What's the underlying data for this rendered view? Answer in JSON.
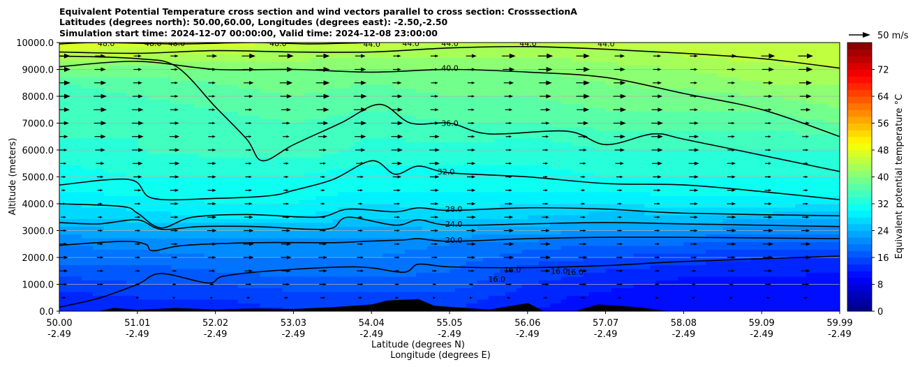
{
  "chart_data": {
    "type": "heatmap",
    "title_lines": [
      "Equivalent Potential Temperature cross section and wind vectors parallel to cross section: CrosssectionA",
      "Latitudes (degrees north): 50.00,60.00, Longitudes (degrees east): -2.50,-2.50",
      "Simulation start time: 2024-12-07 00:00:00, Valid time: 2024-12-08 23:00:00"
    ],
    "ylabel": "Altitude (meters)",
    "xlabel_lines": [
      "Latitude (degrees N)",
      "Longitude (degrees E)"
    ],
    "ylim": [
      0,
      10000
    ],
    "yticks": [
      "0.0",
      "1000.0",
      "2000.0",
      "3000.0",
      "4000.0",
      "5000.0",
      "6000.0",
      "7000.0",
      "8000.0",
      "9000.0",
      "10000.0"
    ],
    "ytick_values": [
      0,
      1000,
      2000,
      3000,
      4000,
      5000,
      6000,
      7000,
      8000,
      9000,
      10000
    ],
    "grid": "horizontal",
    "xticks": [
      {
        "lat": "50.00",
        "lon": "-2.49"
      },
      {
        "lat": "51.01",
        "lon": "-2.49"
      },
      {
        "lat": "52.02",
        "lon": "-2.49"
      },
      {
        "lat": "53.03",
        "lon": "-2.49"
      },
      {
        "lat": "54.04",
        "lon": "-2.49"
      },
      {
        "lat": "55.05",
        "lon": "-2.49"
      },
      {
        "lat": "56.06",
        "lon": "-2.49"
      },
      {
        "lat": "57.07",
        "lon": "-2.49"
      },
      {
        "lat": "58.08",
        "lon": "-2.49"
      },
      {
        "lat": "59.09",
        "lon": "-2.49"
      },
      {
        "lat": "59.99",
        "lon": "-2.49"
      }
    ],
    "xlim": [
      50.0,
      59.99
    ],
    "colorbar": {
      "label": "Equivalent potential temperature $^\\circ$C",
      "label_display": "Equivalent potential temperature °C",
      "ticks": [
        "0",
        "8",
        "16",
        "24",
        "32",
        "40",
        "48",
        "56",
        "64",
        "72"
      ],
      "tick_values": [
        0,
        8,
        16,
        24,
        32,
        40,
        48,
        56,
        64,
        72
      ],
      "range": [
        0,
        80
      ],
      "colormap": "jet"
    },
    "quiver_key": "50 m/s",
    "contour_levels": [
      {
        "level": 16.0,
        "label": "16.0",
        "heights": [
          [
            50.0,
            150
          ],
          [
            50.5,
            480
          ],
          [
            51.0,
            1000
          ],
          [
            51.3,
            1400
          ],
          [
            51.9,
            1050
          ],
          [
            52.1,
            1300
          ],
          [
            52.7,
            1500
          ],
          [
            53.8,
            1650
          ],
          [
            54.4,
            1450
          ],
          [
            54.6,
            1750
          ],
          [
            55.0,
            1650
          ],
          [
            56.0,
            1620
          ],
          [
            57.0,
            1700
          ],
          [
            58.0,
            1850
          ],
          [
            59.99,
            2050
          ]
        ],
        "label_positions": [
          [
            55.6,
            1200
          ],
          [
            55.8,
            1550
          ],
          [
            56.4,
            1500
          ],
          [
            56.6,
            1450
          ]
        ]
      },
      {
        "level": 20.0,
        "label": "20.0",
        "heights": [
          [
            50.0,
            2450
          ],
          [
            50.8,
            2600
          ],
          [
            51.1,
            2500
          ],
          [
            51.2,
            2250
          ],
          [
            51.6,
            2450
          ],
          [
            52.5,
            2550
          ],
          [
            53.5,
            2550
          ],
          [
            53.9,
            2600
          ],
          [
            54.4,
            2650
          ],
          [
            54.6,
            2700
          ],
          [
            55.0,
            2600
          ],
          [
            56.0,
            2700
          ],
          [
            57.0,
            2750
          ],
          [
            58.0,
            2750
          ],
          [
            59.99,
            2700
          ]
        ],
        "label_positions": [
          [
            55.05,
            2650
          ]
        ]
      },
      {
        "level": 24.0,
        "label": "24.0",
        "heights": [
          [
            50.0,
            3300
          ],
          [
            50.5,
            3250
          ],
          [
            51.0,
            3400
          ],
          [
            51.3,
            3050
          ],
          [
            51.8,
            3150
          ],
          [
            52.5,
            3150
          ],
          [
            53.2,
            3050
          ],
          [
            53.5,
            3100
          ],
          [
            53.7,
            3500
          ],
          [
            54.3,
            3200
          ],
          [
            54.6,
            3400
          ],
          [
            55.0,
            3200
          ],
          [
            56.0,
            3250
          ],
          [
            57.0,
            3300
          ],
          [
            58.0,
            3250
          ],
          [
            59.99,
            3150
          ]
        ],
        "label_positions": [
          [
            55.05,
            3250
          ]
        ]
      },
      {
        "level": 28.0,
        "label": "28.0",
        "heights": [
          [
            50.0,
            4000
          ],
          [
            50.8,
            3900
          ],
          [
            51.0,
            3650
          ],
          [
            51.3,
            3100
          ],
          [
            51.7,
            3500
          ],
          [
            52.4,
            3600
          ],
          [
            53.3,
            3500
          ],
          [
            53.7,
            3800
          ],
          [
            54.3,
            3700
          ],
          [
            54.6,
            3850
          ],
          [
            55.0,
            3750
          ],
          [
            56.0,
            3850
          ],
          [
            57.0,
            3800
          ],
          [
            58.0,
            3650
          ],
          [
            59.99,
            3550
          ]
        ],
        "label_positions": [
          [
            55.05,
            3800
          ]
        ]
      },
      {
        "level": 32.0,
        "label": "32.0",
        "heights": [
          [
            50.0,
            4700
          ],
          [
            50.9,
            4900
          ],
          [
            51.2,
            4200
          ],
          [
            52.0,
            4200
          ],
          [
            52.7,
            4300
          ],
          [
            53.0,
            4500
          ],
          [
            53.5,
            4900
          ],
          [
            54.0,
            5600
          ],
          [
            54.3,
            5100
          ],
          [
            54.6,
            5400
          ],
          [
            55.0,
            5150
          ],
          [
            56.0,
            5000
          ],
          [
            57.0,
            4750
          ],
          [
            58.0,
            4700
          ],
          [
            59.0,
            4450
          ],
          [
            59.99,
            4150
          ]
        ],
        "label_positions": [
          [
            54.95,
            5200
          ]
        ]
      },
      {
        "level": 36.0,
        "label": "36.0",
        "heights": [
          [
            50.0,
            9500
          ],
          [
            51.0,
            9400
          ],
          [
            51.5,
            9100
          ],
          [
            52.0,
            7600
          ],
          [
            52.4,
            6400
          ],
          [
            52.6,
            5600
          ],
          [
            53.0,
            6200
          ],
          [
            53.6,
            7000
          ],
          [
            54.1,
            7700
          ],
          [
            54.5,
            7000
          ],
          [
            55.0,
            7000
          ],
          [
            55.5,
            6600
          ],
          [
            56.5,
            6700
          ],
          [
            57.0,
            6200
          ],
          [
            57.6,
            6600
          ],
          [
            58.0,
            6400
          ],
          [
            59.0,
            5800
          ],
          [
            59.99,
            5200
          ]
        ],
        "label_positions": [
          [
            55.0,
            7000
          ]
        ]
      },
      {
        "level": 40.0,
        "label": "40.0",
        "heights": [
          [
            50.0,
            9100
          ],
          [
            51.0,
            9300
          ],
          [
            52.0,
            9000
          ],
          [
            53.0,
            9000
          ],
          [
            54.0,
            8900
          ],
          [
            55.0,
            9000
          ],
          [
            56.0,
            8900
          ],
          [
            57.0,
            8700
          ],
          [
            58.0,
            8100
          ],
          [
            59.0,
            7500
          ],
          [
            59.99,
            6500
          ]
        ],
        "label_positions": [
          [
            55.0,
            9050
          ]
        ]
      },
      {
        "level": 44.0,
        "label": "44.0",
        "heights": [
          [
            50.0,
            9650
          ],
          [
            51.0,
            9600
          ],
          [
            52.0,
            9700
          ],
          [
            53.0,
            9650
          ],
          [
            54.0,
            9650
          ],
          [
            55.0,
            9800
          ],
          [
            56.0,
            9850
          ],
          [
            57.0,
            9750
          ],
          [
            58.0,
            9600
          ],
          [
            59.0,
            9400
          ],
          [
            59.99,
            9050
          ]
        ],
        "label_positions": [
          [
            54.0,
            9950
          ],
          [
            54.5,
            9980
          ],
          [
            55.0,
            9980
          ],
          [
            56.0,
            9980
          ],
          [
            57.0,
            9960
          ]
        ]
      },
      {
        "level": 48.0,
        "label": "48.0",
        "heights": [
          [
            50.0,
            9950
          ],
          [
            50.5,
            10000
          ],
          [
            51.5,
            9950
          ],
          [
            52.5,
            10000
          ],
          [
            53.2,
            9950
          ],
          [
            54.0,
            10000
          ]
        ],
        "label_positions": [
          [
            50.6,
            9980
          ],
          [
            51.2,
            9980
          ],
          [
            51.5,
            9980
          ],
          [
            52.8,
            9980
          ]
        ]
      }
    ],
    "terrain": [
      [
        50.0,
        0
      ],
      [
        50.5,
        0
      ],
      [
        50.7,
        120
      ],
      [
        51.0,
        50
      ],
      [
        51.5,
        120
      ],
      [
        52.0,
        60
      ],
      [
        52.5,
        100
      ],
      [
        53.0,
        80
      ],
      [
        53.5,
        150
      ],
      [
        54.0,
        250
      ],
      [
        54.2,
        400
      ],
      [
        54.6,
        450
      ],
      [
        54.8,
        200
      ],
      [
        55.5,
        60
      ],
      [
        56.0,
        300
      ],
      [
        56.2,
        0
      ],
      [
        56.6,
        0
      ],
      [
        56.9,
        250
      ],
      [
        57.4,
        150
      ],
      [
        57.8,
        0
      ],
      [
        59.99,
        0
      ]
    ],
    "theta_field": {
      "x": [
        50.0,
        51.0,
        52.0,
        53.0,
        54.0,
        55.0,
        56.0,
        57.0,
        58.0,
        59.0,
        59.99
      ],
      "y": [
        0,
        500,
        1000,
        1500,
        2000,
        2500,
        3000,
        3500,
        4000,
        4500,
        5000,
        5500,
        6000,
        6500,
        7000,
        7500,
        8000,
        8500,
        9000,
        9500,
        10000
      ],
      "values": [
        [
          12,
          13,
          13,
          14,
          14,
          14,
          12,
          11,
          10,
          10,
          10
        ],
        [
          13,
          14,
          14,
          15,
          15,
          15,
          13,
          11,
          10,
          10,
          10
        ],
        [
          15,
          16,
          16,
          17,
          17,
          17,
          14,
          13,
          11,
          11,
          11
        ],
        [
          17,
          17,
          18,
          19,
          19,
          18,
          15,
          14,
          13,
          13,
          12
        ],
        [
          19,
          19,
          20,
          20,
          20,
          19,
          17,
          16,
          15,
          14,
          14
        ],
        [
          20,
          21,
          21,
          21,
          21,
          20,
          19,
          18,
          18,
          17,
          17
        ],
        [
          23,
          24,
          24,
          24,
          23,
          24,
          23,
          22,
          22,
          21,
          21
        ],
        [
          26,
          27,
          28,
          28,
          26,
          26,
          26,
          25,
          25,
          25,
          24
        ],
        [
          28,
          29,
          30,
          30,
          28,
          29,
          28,
          28,
          29,
          29,
          28
        ],
        [
          30,
          31,
          31,
          31,
          30,
          30,
          30,
          30,
          31,
          31,
          31
        ],
        [
          31,
          32,
          32,
          32,
          31,
          31,
          31,
          32,
          32,
          32,
          32
        ],
        [
          32,
          33,
          33,
          33,
          32,
          32,
          32,
          33,
          33,
          33,
          33
        ],
        [
          33,
          34,
          35,
          36,
          33,
          33,
          33,
          34,
          34,
          34,
          34
        ],
        [
          34,
          34,
          35,
          36,
          34,
          35,
          34,
          35,
          35,
          35,
          36
        ],
        [
          34,
          35,
          35,
          36,
          35,
          36,
          36,
          37,
          37,
          37,
          38
        ],
        [
          35,
          35,
          36,
          37,
          36,
          37,
          37,
          38,
          38,
          38,
          40
        ],
        [
          35,
          36,
          37,
          38,
          37,
          38,
          38,
          39,
          39,
          40,
          41
        ],
        [
          36,
          37,
          38,
          39,
          38,
          39,
          39,
          40,
          41,
          42,
          42
        ],
        [
          40,
          39,
          40,
          40,
          40,
          40,
          40,
          41,
          42,
          43,
          44
        ],
        [
          44,
          44,
          43,
          43,
          42,
          42,
          42,
          43,
          44,
          45,
          45
        ],
        [
          48,
          47,
          47,
          46,
          46,
          45,
          45,
          45,
          45,
          45,
          46
        ]
      ]
    },
    "wind_grid": {
      "x": [
        50.0,
        50.47,
        50.95,
        51.42,
        51.9,
        52.37,
        52.85,
        53.32,
        53.8,
        54.27,
        54.75,
        55.22,
        55.7,
        56.17,
        56.65,
        57.12,
        57.6,
        58.07,
        58.55,
        59.02,
        59.5
      ],
      "y": [
        500,
        1000,
        1500,
        2000,
        2500,
        3000,
        3500,
        4000,
        4500,
        5000,
        5500,
        6000,
        6500,
        7000,
        7500,
        8000,
        8500,
        9000,
        9500
      ],
      "u_profile_m_s": [
        8,
        12,
        15,
        17,
        17,
        16,
        15,
        14,
        14,
        15,
        17,
        18,
        19,
        20,
        21,
        22,
        22,
        23,
        24
      ]
    }
  },
  "colors": {
    "contour": "#000000",
    "terrain": "#000000",
    "grid": "#b0b0b0",
    "quiver": "#000000"
  }
}
